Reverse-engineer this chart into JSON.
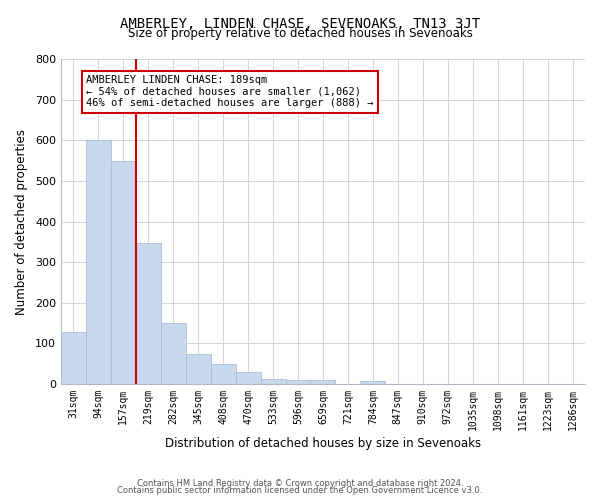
{
  "title": "AMBERLEY, LINDEN CHASE, SEVENOAKS, TN13 3JT",
  "subtitle": "Size of property relative to detached houses in Sevenoaks",
  "xlabel": "Distribution of detached houses by size in Sevenoaks",
  "ylabel": "Number of detached properties",
  "bin_labels": [
    "31sqm",
    "94sqm",
    "157sqm",
    "219sqm",
    "282sqm",
    "345sqm",
    "408sqm",
    "470sqm",
    "533sqm",
    "596sqm",
    "659sqm",
    "721sqm",
    "784sqm",
    "847sqm",
    "910sqm",
    "972sqm",
    "1035sqm",
    "1098sqm",
    "1161sqm",
    "1223sqm",
    "1286sqm"
  ],
  "bar_heights": [
    128,
    600,
    550,
    348,
    150,
    75,
    50,
    30,
    12,
    10,
    10,
    0,
    8,
    0,
    0,
    0,
    0,
    0,
    0,
    0,
    0
  ],
  "bar_color": "#c9d9ed",
  "bar_edge_color": "#aabfd8",
  "vline_x": 2.5,
  "vline_color": "#cc0000",
  "annotation_title": "AMBERLEY LINDEN CHASE: 189sqm",
  "annotation_line1": "← 54% of detached houses are smaller (1,062)",
  "annotation_line2": "46% of semi-detached houses are larger (888) →",
  "annotation_box_color": "#ffffff",
  "annotation_box_edge": "#cc0000",
  "ylim": [
    0,
    800
  ],
  "yticks": [
    0,
    100,
    200,
    300,
    400,
    500,
    600,
    700,
    800
  ],
  "footer1": "Contains HM Land Registry data © Crown copyright and database right 2024.",
  "footer2": "Contains public sector information licensed under the Open Government Licence v3.0.",
  "background_color": "#ffffff",
  "grid_color": "#cdd5e0"
}
